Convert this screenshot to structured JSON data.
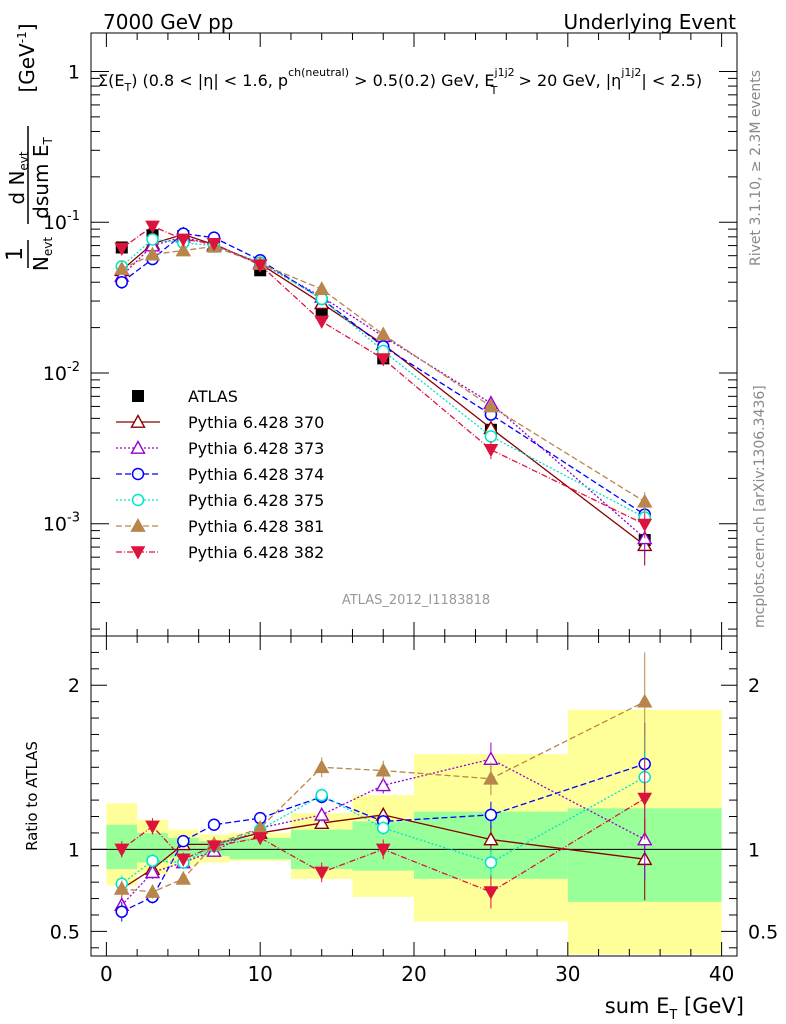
{
  "header": {
    "left": "7000 GeV pp",
    "right": "Underlying Event"
  },
  "side_texts": {
    "rivet": "Rivet 3.1.10, ≥ 2.3M events",
    "mcplots": "mcplots.cern.ch [arXiv:1306.3436]"
  },
  "analysis_label": "ATLAS_2012_I1183818",
  "colors": {
    "atlas": "#000000",
    "p370": "#8b0000",
    "p373": "#9400d3",
    "p374": "#0000ff",
    "p375": "#00e5c8",
    "p381": "#b8864b",
    "p382": "#dc143c",
    "band_inner": "#99ff99",
    "band_outer": "#ffff99"
  },
  "chart_data": {
    "type": "line",
    "title": "Σ(E_T) (0.8 < |η| < 1.6, p^ch(neutral) > 0.5(0.2) GeV, E_T^j1j2 > 20 GeV, |η^j1j2| < 2.5)",
    "xlabel": "sum E_T [GeV]",
    "ylabel": "1/N_evt dN_evt/dsum E_T [GeV^-1]",
    "ratio_ylabel": "Ratio to ATLAS",
    "xlim": [
      -1,
      41
    ],
    "ylim": [
      0.00018,
      1.8
    ],
    "yscale": "log",
    "ratio_ylim": [
      0.35,
      2.3
    ],
    "x_ticks": [
      0,
      10,
      20,
      30,
      40
    ],
    "y_ticks": [
      "10^-3",
      "10^-2",
      "10^-1",
      "1"
    ],
    "ratio_ticks": [
      "0.5",
      "1",
      "2"
    ],
    "legend_position": "lower-left",
    "x": [
      1,
      3,
      5,
      7,
      10,
      14,
      18,
      25,
      35
    ],
    "bins": [
      [
        0,
        2
      ],
      [
        2,
        4
      ],
      [
        4,
        6
      ],
      [
        6,
        8
      ],
      [
        8,
        12
      ],
      [
        12,
        16
      ],
      [
        16,
        20
      ],
      [
        20,
        30
      ],
      [
        30,
        40
      ]
    ],
    "band_inner": [
      [
        0.88,
        1.15
      ],
      [
        0.92,
        1.1
      ],
      [
        0.95,
        1.07
      ],
      [
        0.96,
        1.05
      ],
      [
        0.94,
        1.07
      ],
      [
        0.88,
        1.12
      ],
      [
        0.87,
        1.17
      ],
      [
        0.82,
        1.23
      ],
      [
        0.68,
        1.25
      ]
    ],
    "band_outer": [
      [
        0.78,
        1.28
      ],
      [
        0.85,
        1.18
      ],
      [
        0.9,
        1.12
      ],
      [
        0.92,
        1.09
      ],
      [
        0.93,
        1.1
      ],
      [
        0.82,
        1.22
      ],
      [
        0.71,
        1.33
      ],
      [
        0.56,
        1.58
      ],
      [
        0.36,
        1.85
      ]
    ],
    "series": [
      {
        "name": "ATLAS",
        "key": "atlas",
        "marker": "square",
        "dash": "",
        "values": [
          0.068,
          0.082,
          0.081,
          0.069,
          0.048,
          0.025,
          0.0125,
          0.0042,
          0.00078
        ],
        "ratio": [
          1,
          1,
          1,
          1,
          1,
          1,
          1,
          1,
          1
        ],
        "ratio_err": [
          0,
          0,
          0,
          0,
          0,
          0,
          0,
          0,
          0
        ]
      },
      {
        "name": "Pythia 6.428 370",
        "key": "p370",
        "marker": "tri-up-open",
        "dash": "",
        "values": [
          0.048,
          0.072,
          0.083,
          0.071,
          0.053,
          0.029,
          0.0155,
          0.0043,
          0.00072
        ],
        "ratio": [
          0.76,
          0.88,
          1.03,
          1.03,
          1.1,
          1.16,
          1.21,
          1.06,
          0.94
        ],
        "ratio_err": [
          0.05,
          0.04,
          0.03,
          0.02,
          0.02,
          0.03,
          0.04,
          0.08,
          0.25
        ]
      },
      {
        "name": "Pythia 6.428 373",
        "key": "p373",
        "marker": "tri-up-open",
        "dash": "2,2",
        "values": [
          0.044,
          0.07,
          0.08,
          0.07,
          0.054,
          0.032,
          0.0175,
          0.0063,
          0.0008
        ],
        "ratio": [
          0.66,
          0.86,
          0.92,
          0.99,
          1.13,
          1.21,
          1.39,
          1.55,
          1.06
        ],
        "ratio_err": [
          0.05,
          0.04,
          0.04,
          0.03,
          0.03,
          0.04,
          0.05,
          0.1,
          0.25
        ]
      },
      {
        "name": "Pythia 6.428 374",
        "key": "p374",
        "marker": "circle-open",
        "dash": "6,3",
        "values": [
          0.04,
          0.057,
          0.084,
          0.079,
          0.056,
          0.031,
          0.015,
          0.0053,
          0.00115
        ],
        "ratio": [
          0.62,
          0.71,
          1.05,
          1.15,
          1.19,
          1.32,
          1.17,
          1.21,
          1.52
        ],
        "ratio_err": [
          0.06,
          0.04,
          0.03,
          0.03,
          0.03,
          0.04,
          0.04,
          0.08,
          0.25
        ]
      },
      {
        "name": "Pythia 6.428 375",
        "key": "p375",
        "marker": "circle-open",
        "dash": "2,2",
        "values": [
          0.051,
          0.077,
          0.073,
          0.07,
          0.054,
          0.031,
          0.014,
          0.0038,
          0.0011
        ],
        "ratio": [
          0.79,
          0.93,
          0.92,
          1.02,
          1.12,
          1.33,
          1.13,
          0.92,
          1.44
        ],
        "ratio_err": [
          0.05,
          0.04,
          0.03,
          0.02,
          0.03,
          0.04,
          0.04,
          0.08,
          0.25
        ]
      },
      {
        "name": "Pythia 6.428 381",
        "key": "p381",
        "marker": "tri-up",
        "dash": "6,3",
        "values": [
          0.049,
          0.061,
          0.065,
          0.069,
          0.053,
          0.036,
          0.018,
          0.006,
          0.0014
        ],
        "ratio": [
          0.76,
          0.74,
          0.82,
          1.03,
          1.13,
          1.5,
          1.48,
          1.43,
          1.9
        ],
        "ratio_err": [
          0.05,
          0.04,
          0.03,
          0.03,
          0.03,
          0.06,
          0.06,
          0.1,
          0.3
        ]
      },
      {
        "name": "Pythia 6.428 382",
        "key": "p382",
        "marker": "tri-down",
        "dash": "6,2,1,2",
        "values": [
          0.067,
          0.094,
          0.077,
          0.072,
          0.052,
          0.022,
          0.0124,
          0.0031,
          0.00099
        ],
        "ratio": [
          1.0,
          1.14,
          0.94,
          1.02,
          1.07,
          0.86,
          1.0,
          0.74,
          1.31
        ],
        "ratio_err": [
          0.05,
          0.05,
          0.04,
          0.03,
          0.03,
          0.06,
          0.06,
          0.1,
          0.25
        ]
      }
    ]
  }
}
